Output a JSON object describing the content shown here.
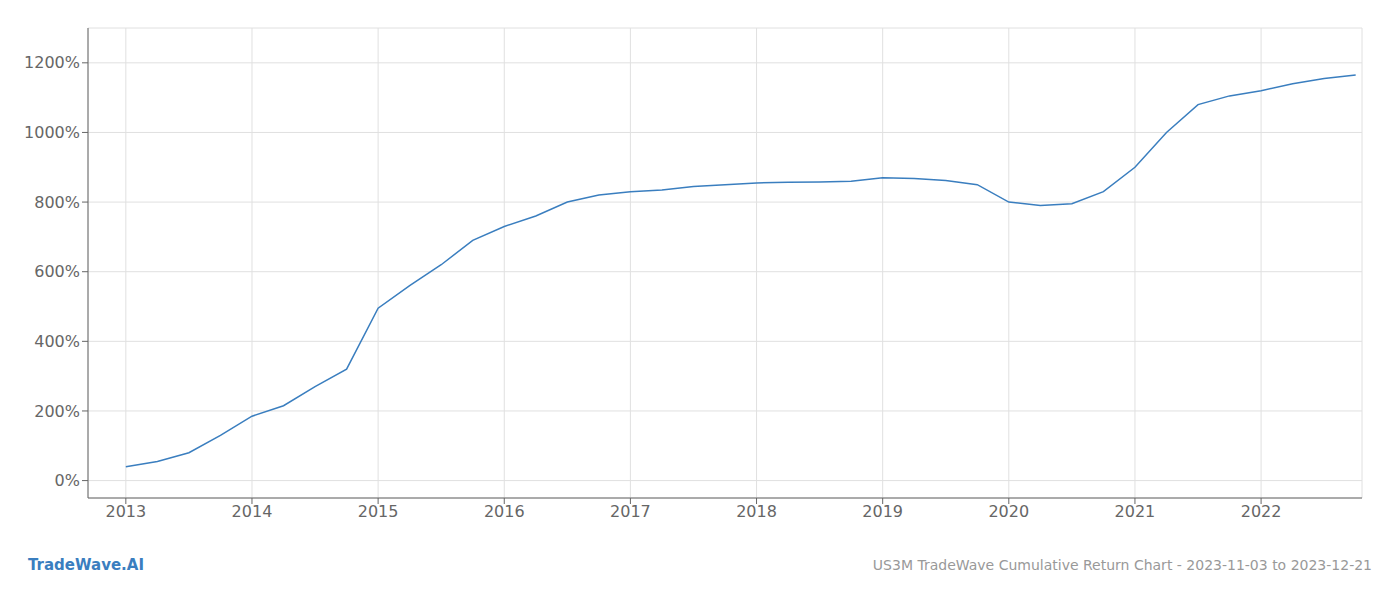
{
  "chart_data": {
    "type": "line",
    "title": "US3M TradeWave Cumulative Return Chart - 2023-11-03 to 2023-12-21",
    "annotations": [
      "TradeWave.AI"
    ],
    "x": [
      2013,
      2013.25,
      2013.5,
      2013.75,
      2014.0,
      2014.25,
      2014.5,
      2014.75,
      2015.0,
      2015.25,
      2015.5,
      2015.75,
      2016.0,
      2016.25,
      2016.5,
      2016.75,
      2017.0,
      2017.25,
      2017.5,
      2017.75,
      2018.0,
      2018.25,
      2018.5,
      2018.75,
      2019.0,
      2019.25,
      2019.5,
      2019.75,
      2020.0,
      2020.25,
      2020.5,
      2020.75,
      2021.0,
      2021.25,
      2021.5,
      2021.75,
      2022.0,
      2022.25,
      2022.5,
      2022.75
    ],
    "values": [
      40,
      55,
      80,
      130,
      185,
      215,
      270,
      320,
      495,
      560,
      620,
      690,
      730,
      760,
      800,
      820,
      830,
      835,
      845,
      850,
      855,
      857,
      858,
      860,
      870,
      868,
      862,
      850,
      800,
      790,
      795,
      830,
      900,
      1000,
      1080,
      1105,
      1120,
      1140,
      1155,
      1165
    ],
    "color": "#3a7ebf",
    "xlim": [
      2012.7,
      2022.8
    ],
    "ylim": [
      -50,
      1300
    ],
    "xticks": [
      2013,
      2014,
      2015,
      2016,
      2017,
      2018,
      2019,
      2020,
      2021,
      2022
    ],
    "yticks": [
      {
        "value": 0,
        "label": "0%"
      },
      {
        "value": 200,
        "label": "200%"
      },
      {
        "value": 400,
        "label": "400%"
      },
      {
        "value": 600,
        "label": "600%"
      },
      {
        "value": 800,
        "label": "800%"
      },
      {
        "value": 1000,
        "label": "1000%"
      },
      {
        "value": 1200,
        "label": "1200%"
      }
    ],
    "grid": true
  }
}
